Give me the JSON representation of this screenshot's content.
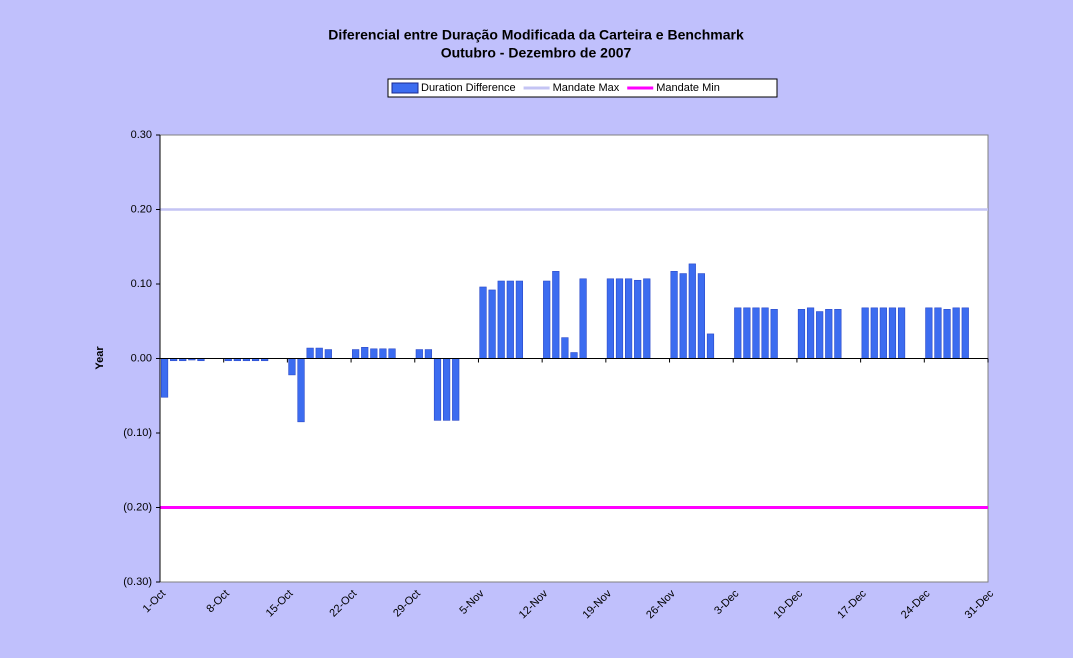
{
  "chart_data": {
    "type": "bar",
    "title": "Diferencial entre Duração Modificada da Carteira e Benchmark",
    "subtitle": "Outubro - Dezembro de 2007",
    "y_label": "Year",
    "categories": [
      "1-Oct",
      null,
      null,
      null,
      null,
      null,
      null,
      "8-Oct",
      null,
      null,
      null,
      null,
      null,
      null,
      "15-Oct",
      null,
      null,
      null,
      null,
      null,
      null,
      "22-Oct",
      null,
      null,
      null,
      null,
      null,
      null,
      "29-Oct",
      null,
      null,
      null,
      null,
      null,
      null,
      "5-Nov",
      null,
      null,
      null,
      null,
      null,
      null,
      "12-Nov",
      null,
      null,
      null,
      null,
      null,
      null,
      "19-Nov",
      null,
      null,
      null,
      null,
      null,
      null,
      "26-Nov",
      null,
      null,
      null,
      null,
      null,
      null,
      "3-Dec",
      null,
      null,
      null,
      null,
      null,
      null,
      "10-Dec",
      null,
      null,
      null,
      null,
      null,
      null,
      "17-Dec",
      null,
      null,
      null,
      null,
      null,
      null,
      "24-Dec",
      null,
      null,
      null,
      null,
      null,
      null,
      "31-Dec"
    ],
    "series": [
      {
        "name": "Duration Difference",
        "type": "bar",
        "color": "#3c6cf0",
        "values": [
          -0.052,
          -0.003,
          -0.003,
          -0.002,
          -0.003,
          null,
          null,
          -0.003,
          -0.003,
          -0.003,
          -0.003,
          -0.003,
          null,
          null,
          -0.022,
          -0.085,
          0.014,
          0.014,
          0.012,
          null,
          null,
          0.012,
          0.015,
          0.013,
          0.013,
          0.013,
          null,
          null,
          0.012,
          0.012,
          -0.083,
          -0.083,
          -0.083,
          null,
          null,
          0.096,
          0.092,
          0.104,
          0.104,
          0.104,
          null,
          null,
          0.104,
          0.117,
          0.028,
          0.008,
          0.107,
          null,
          null,
          0.107,
          0.107,
          0.107,
          0.105,
          0.107,
          null,
          null,
          0.117,
          0.114,
          0.127,
          0.114,
          0.033,
          null,
          null,
          0.068,
          0.068,
          0.068,
          0.068,
          0.066,
          null,
          null,
          0.066,
          0.068,
          0.063,
          0.066,
          0.066,
          null,
          null,
          0.068,
          0.068,
          0.068,
          0.068,
          0.068,
          null,
          null,
          0.068,
          0.068,
          0.066,
          0.068,
          0.068,
          null,
          null,
          0.017
        ]
      },
      {
        "name": "Mandate Max",
        "type": "line",
        "color": "#c4c4f4",
        "values": [
          0.2,
          0.2,
          0.2,
          0.2,
          0.2,
          0.2,
          0.2,
          0.2,
          0.2,
          0.2,
          0.2,
          0.2,
          0.2,
          0.2,
          0.2,
          0.2,
          0.2,
          0.2,
          0.2,
          0.2,
          0.2,
          0.2,
          0.2,
          0.2,
          0.2,
          0.2,
          0.2,
          0.2,
          0.2,
          0.2,
          0.2,
          0.2,
          0.2,
          0.2,
          0.2,
          0.2,
          0.2,
          0.2,
          0.2,
          0.2,
          0.2,
          0.2,
          0.2,
          0.2,
          0.2,
          0.2,
          0.2,
          0.2,
          0.2,
          0.2,
          0.2,
          0.2,
          0.2,
          0.2,
          0.2,
          0.2,
          0.2,
          0.2,
          0.2,
          0.2,
          0.2,
          0.2,
          0.2,
          0.2,
          0.2,
          0.2,
          0.2,
          0.2,
          0.2,
          0.2,
          0.2,
          0.2,
          0.2,
          0.2,
          0.2,
          0.2,
          0.2,
          0.2,
          0.2,
          0.2,
          0.2,
          0.2,
          0.2,
          0.2,
          0.2,
          0.2,
          0.2,
          0.2,
          0.2,
          0.2,
          0.2,
          0.2
        ]
      },
      {
        "name": "Mandate Min",
        "type": "line",
        "color": "#ff00ff",
        "values": [
          -0.2,
          -0.2,
          -0.2,
          -0.2,
          -0.2,
          -0.2,
          -0.2,
          -0.2,
          -0.2,
          -0.2,
          -0.2,
          -0.2,
          -0.2,
          -0.2,
          -0.2,
          -0.2,
          -0.2,
          -0.2,
          -0.2,
          -0.2,
          -0.2,
          -0.2,
          -0.2,
          -0.2,
          -0.2,
          -0.2,
          -0.2,
          -0.2,
          -0.2,
          -0.2,
          -0.2,
          -0.2,
          -0.2,
          -0.2,
          -0.2,
          -0.2,
          -0.2,
          -0.2,
          -0.2,
          -0.2,
          -0.2,
          -0.2,
          -0.2,
          -0.2,
          -0.2,
          -0.2,
          -0.2,
          -0.2,
          -0.2,
          -0.2,
          -0.2,
          -0.2,
          -0.2,
          -0.2,
          -0.2,
          -0.2,
          -0.2,
          -0.2,
          -0.2,
          -0.2,
          -0.2,
          -0.2,
          -0.2,
          -0.2,
          -0.2,
          -0.2,
          -0.2,
          -0.2,
          -0.2,
          -0.2,
          -0.2,
          -0.2,
          -0.2,
          -0.2,
          -0.2,
          -0.2,
          -0.2,
          -0.2,
          -0.2,
          -0.2,
          -0.2,
          -0.2,
          -0.2,
          -0.2,
          -0.2,
          -0.2,
          -0.2,
          -0.2,
          -0.2,
          -0.2,
          -0.2,
          -0.2
        ]
      }
    ],
    "ylim": [
      -0.3,
      0.3
    ],
    "yticks": [
      {
        "value": -0.3,
        "label": "(0.30)"
      },
      {
        "value": -0.2,
        "label": "(0.20)"
      },
      {
        "value": -0.1,
        "label": "(0.10)"
      },
      {
        "value": 0,
        "label": "0.00"
      },
      {
        "value": 0.1,
        "label": "0.10"
      },
      {
        "value": 0.2,
        "label": "0.20"
      },
      {
        "value": 0.3,
        "label": "0.30"
      }
    ],
    "legend": "top"
  }
}
